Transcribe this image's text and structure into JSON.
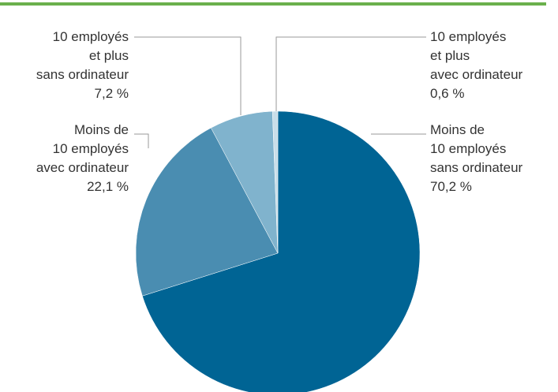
{
  "chart_data": {
    "type": "pie",
    "categories": [
      [
        "Moins de",
        "10 employés",
        "sans ordinateur"
      ],
      [
        "Moins de",
        "10 employés",
        "avec ordinateur"
      ],
      [
        "10 employés",
        "et plus",
        "sans ordinateur"
      ],
      [
        "10 employés",
        "et plus",
        "avec ordinateur"
      ]
    ],
    "values": [
      70.2,
      22.1,
      7.2,
      0.6
    ],
    "value_labels": [
      "70,2 %",
      "22,1 %",
      "7,2 %",
      "0,6 %"
    ],
    "colors": [
      "#006494",
      "#4a8db1",
      "#80b3cd",
      "#c9dee9"
    ]
  }
}
